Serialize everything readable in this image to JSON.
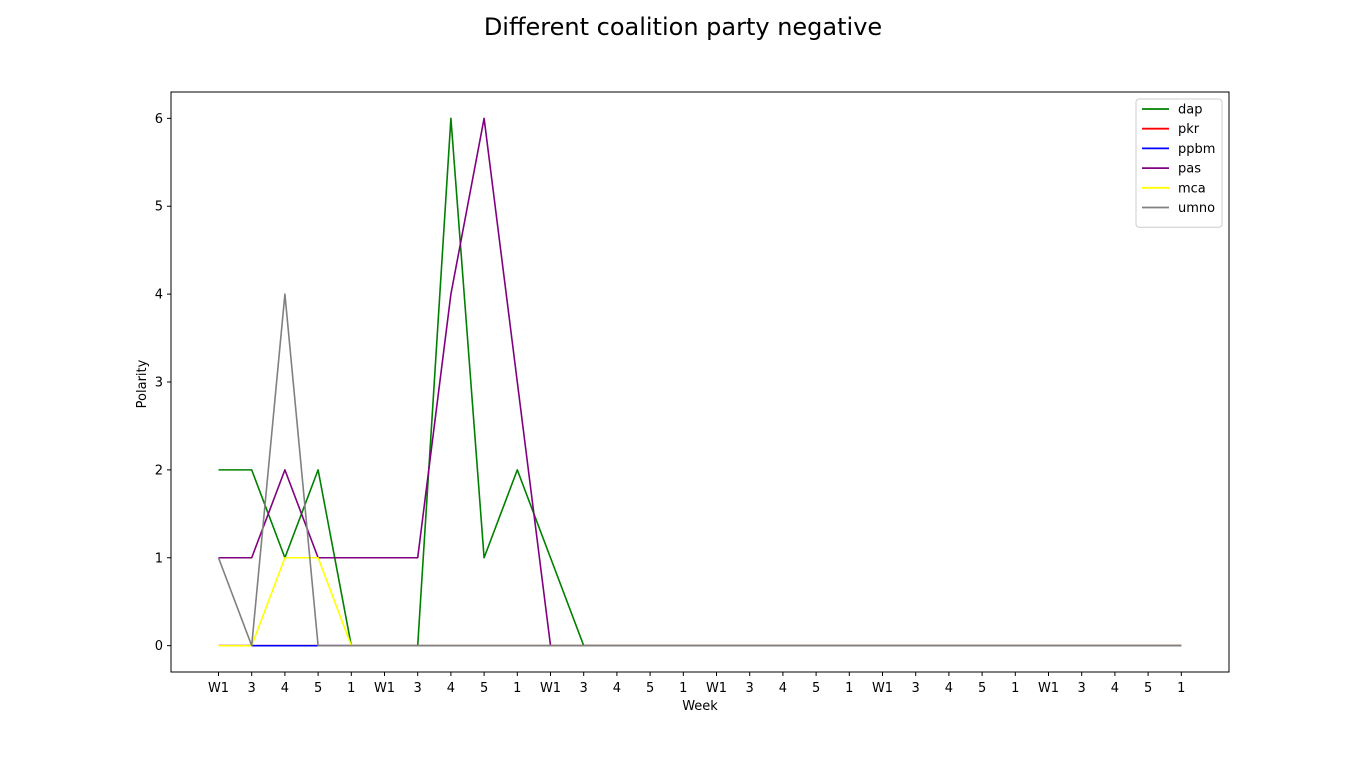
{
  "chart_data": {
    "type": "line",
    "title": "Different coalition party negative",
    "xlabel": "Week",
    "ylabel": "Polarity",
    "x": [
      "W1",
      "3",
      "4",
      "5",
      "1",
      "W1",
      "3",
      "4",
      "5",
      "1",
      "W1",
      "3",
      "4",
      "5",
      "1",
      "W1",
      "3",
      "4",
      "5",
      "1",
      "W1",
      "3",
      "4",
      "5",
      "1",
      "W1",
      "3",
      "4",
      "5",
      "1"
    ],
    "ylim": [
      -0.3,
      6.3
    ],
    "yticks": [
      0,
      1,
      2,
      3,
      4,
      5,
      6
    ],
    "grid": false,
    "legend_position": "top-right",
    "series": [
      {
        "name": "dap",
        "color": "#008000",
        "values": [
          2,
          2,
          1,
          2,
          0,
          0,
          0,
          6,
          1,
          2,
          1,
          0,
          0,
          0,
          0,
          0,
          0,
          0,
          0,
          0,
          0,
          0,
          0,
          0,
          0,
          0,
          0,
          0,
          0,
          0
        ]
      },
      {
        "name": "pkr",
        "color": "#ff0000",
        "values": [
          0,
          0,
          0,
          0,
          0,
          0,
          0,
          0,
          0,
          0,
          0,
          0,
          0,
          0,
          0,
          0,
          0,
          0,
          0,
          0,
          0,
          0,
          0,
          0,
          0,
          0,
          0,
          0,
          0,
          0
        ]
      },
      {
        "name": "ppbm",
        "color": "#0000ff",
        "values": [
          0,
          0,
          0,
          0,
          0,
          0,
          0,
          0,
          0,
          0,
          0,
          0,
          0,
          0,
          0,
          0,
          0,
          0,
          0,
          0,
          0,
          0,
          0,
          0,
          0,
          0,
          0,
          0,
          0,
          0
        ]
      },
      {
        "name": "pas",
        "color": "#800080",
        "values": [
          1,
          1,
          2,
          1,
          1,
          1,
          1,
          4,
          6,
          3,
          0,
          0,
          0,
          0,
          0,
          0,
          0,
          0,
          0,
          0,
          0,
          0,
          0,
          0,
          0,
          0,
          0,
          0,
          0,
          0
        ]
      },
      {
        "name": "mca",
        "color": "#ffff00",
        "values": [
          0,
          0,
          1,
          1,
          0,
          0,
          0,
          0,
          0,
          0,
          0,
          0,
          0,
          0,
          0,
          0,
          0,
          0,
          0,
          0,
          0,
          0,
          0,
          0,
          0,
          0,
          0,
          0,
          0,
          0
        ]
      },
      {
        "name": "umno",
        "color": "#808080",
        "values": [
          1,
          0,
          4,
          0,
          0,
          0,
          0,
          0,
          0,
          0,
          0,
          0,
          0,
          0,
          0,
          0,
          0,
          0,
          0,
          0,
          0,
          0,
          0,
          0,
          0,
          0,
          0,
          0,
          0,
          0
        ]
      }
    ]
  }
}
